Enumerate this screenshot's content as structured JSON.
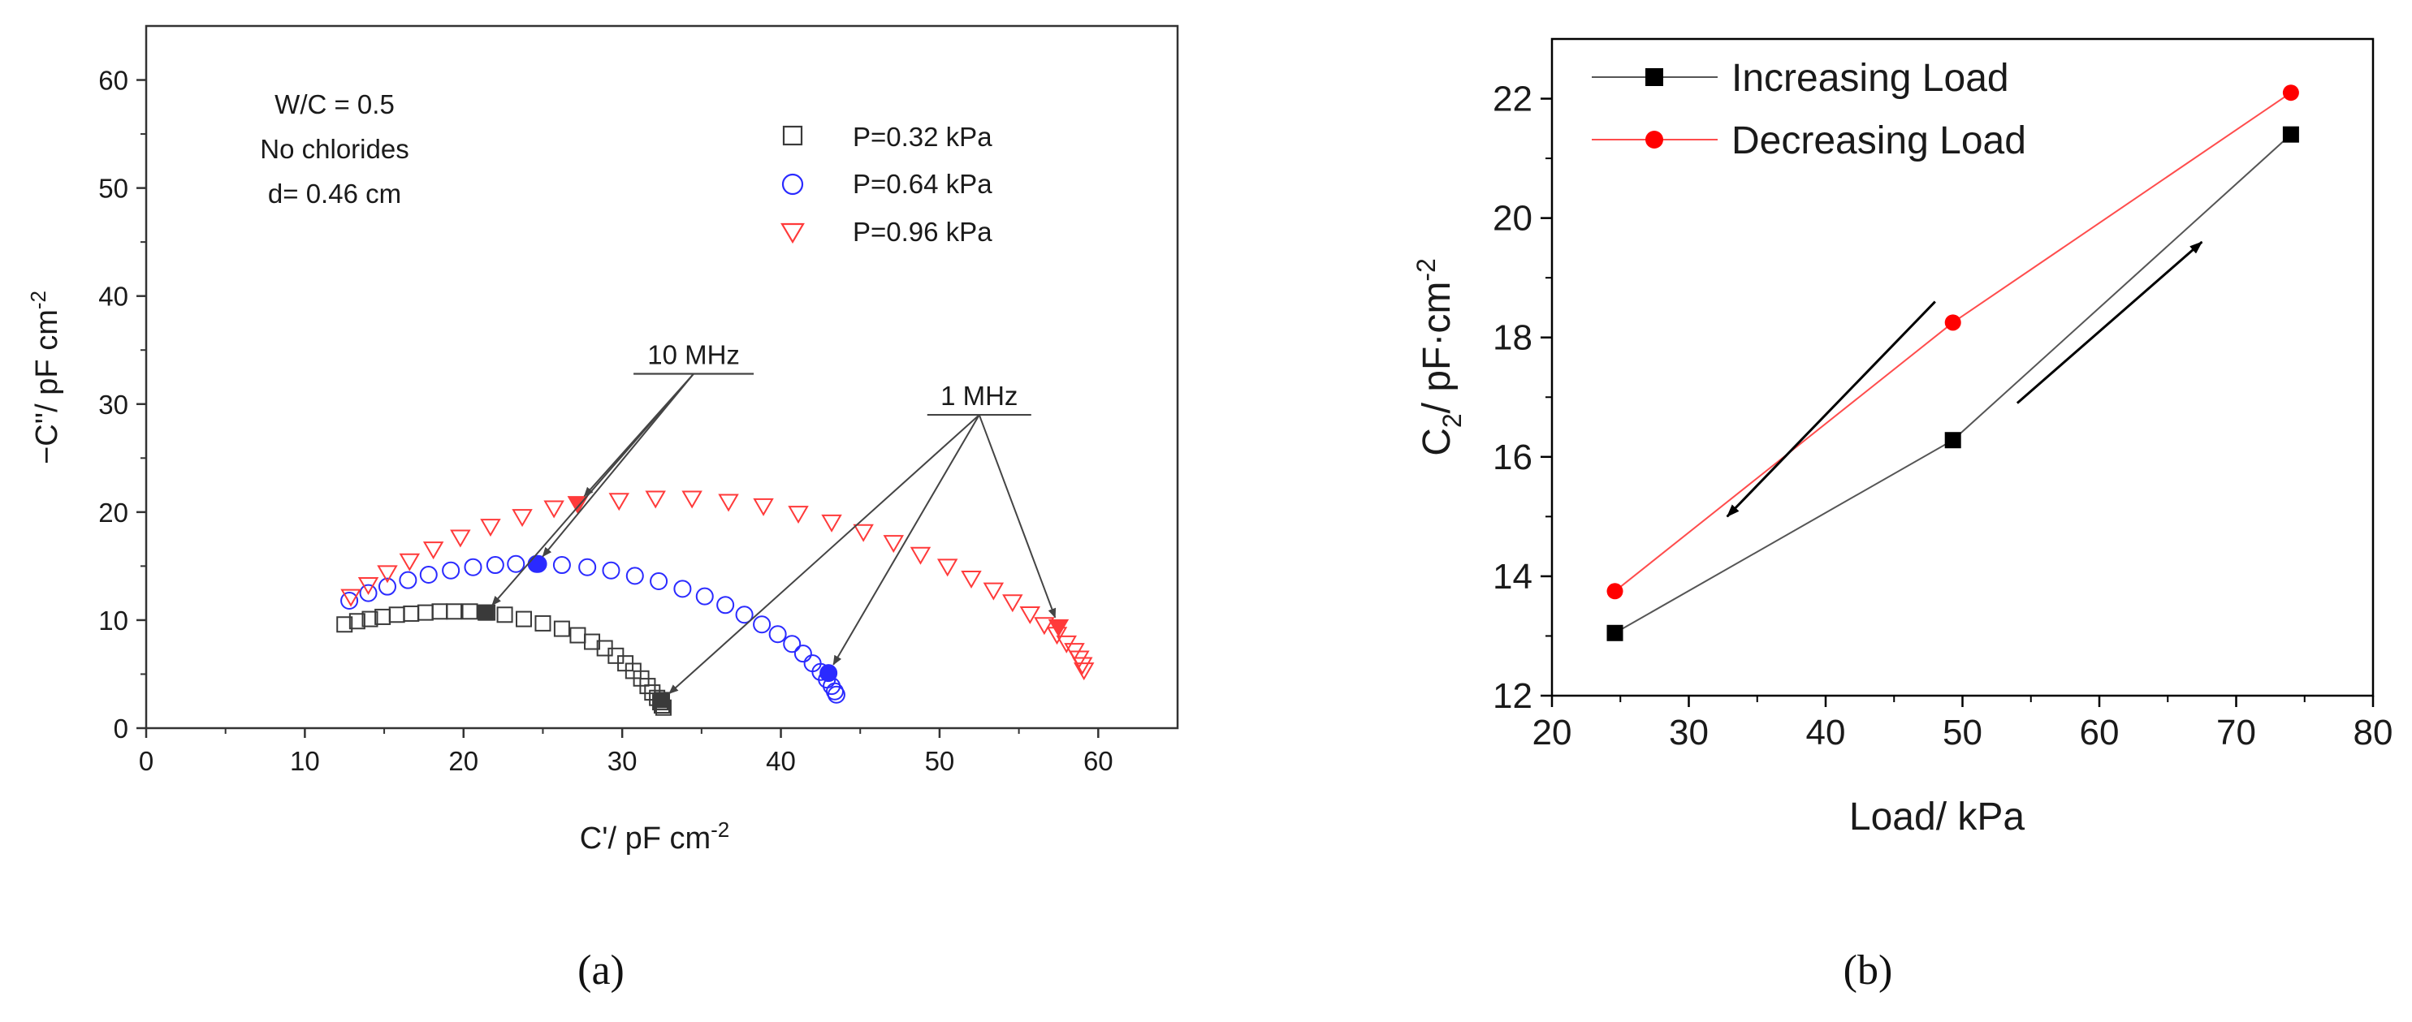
{
  "chart_data": [
    {
      "panel": "(a)",
      "type": "scatter",
      "title": "",
      "xlabel": "C'/ pF cm",
      "xlabel_sup": "-2",
      "ylabel": "−C''/ pF cm",
      "ylabel_sup": "-2",
      "xlim": [
        0,
        65
      ],
      "ylim": [
        0,
        65
      ],
      "xticks": [
        0,
        10,
        20,
        30,
        40,
        50,
        60
      ],
      "yticks": [
        0,
        10,
        20,
        30,
        40,
        50,
        60
      ],
      "info_text": [
        "W/C = 0.5",
        "No chlorides",
        "d= 0.46 cm"
      ],
      "legend_position": "top-right",
      "series": [
        {
          "name": "P=0.32 kPa",
          "marker": "square",
          "color": "#3a3a3a",
          "x": [
            12.5,
            13.3,
            14.1,
            14.9,
            15.8,
            16.7,
            17.6,
            18.5,
            19.4,
            20.4,
            21.5,
            22.6,
            23.8,
            25.0,
            26.2,
            27.2,
            28.1,
            28.9,
            29.6,
            30.2,
            30.7,
            31.2,
            31.6,
            31.9,
            32.2,
            32.4,
            32.5,
            32.6
          ],
          "y": [
            9.6,
            9.9,
            10.1,
            10.3,
            10.5,
            10.6,
            10.7,
            10.8,
            10.8,
            10.8,
            10.7,
            10.5,
            10.1,
            9.7,
            9.2,
            8.6,
            8.0,
            7.4,
            6.7,
            6.0,
            5.3,
            4.6,
            3.9,
            3.3,
            2.8,
            2.4,
            2.1,
            1.9
          ],
          "highlight": {
            "x": 21.4,
            "y": 10.7,
            "x2": 32.5,
            "y2": 2.6
          }
        },
        {
          "name": "P=0.64 kPa",
          "marker": "circle",
          "color": "#2a2aff",
          "x": [
            12.8,
            14.0,
            15.2,
            16.5,
            17.8,
            19.2,
            20.6,
            22.0,
            23.3,
            24.7,
            26.2,
            27.8,
            29.3,
            30.8,
            32.3,
            33.8,
            35.2,
            36.5,
            37.7,
            38.8,
            39.8,
            40.7,
            41.4,
            42.0,
            42.5,
            42.9,
            43.2,
            43.4,
            43.5
          ],
          "y": [
            11.8,
            12.5,
            13.1,
            13.7,
            14.2,
            14.6,
            14.9,
            15.1,
            15.2,
            15.2,
            15.1,
            14.9,
            14.6,
            14.1,
            13.6,
            12.9,
            12.2,
            11.4,
            10.5,
            9.6,
            8.7,
            7.8,
            6.9,
            6.0,
            5.2,
            4.5,
            3.9,
            3.4,
            3.1
          ],
          "highlight": {
            "x": 24.6,
            "y": 15.2,
            "x2": 43.0,
            "y2": 5.1
          }
        },
        {
          "name": "P=0.96 kPa",
          "marker": "triangle-down",
          "color": "#ff3a3a",
          "x": [
            12.9,
            14.0,
            15.2,
            16.6,
            18.1,
            19.8,
            21.7,
            23.7,
            25.7,
            27.2,
            29.8,
            32.1,
            34.4,
            36.7,
            38.9,
            41.1,
            43.2,
            45.2,
            47.1,
            48.8,
            50.5,
            52.0,
            53.4,
            54.6,
            55.7,
            56.6,
            57.4,
            58.0,
            58.5,
            58.8,
            59.0,
            59.1
          ],
          "y": [
            12.2,
            13.3,
            14.4,
            15.5,
            16.6,
            17.7,
            18.7,
            19.6,
            20.4,
            20.8,
            21.1,
            21.3,
            21.3,
            21.0,
            20.6,
            19.9,
            19.1,
            18.2,
            17.2,
            16.1,
            15.0,
            13.9,
            12.8,
            11.7,
            10.6,
            9.6,
            8.7,
            7.9,
            7.2,
            6.5,
            5.9,
            5.4
          ],
          "highlight": {
            "x": 27.2,
            "y": 20.8,
            "x2": 57.5,
            "y2": 9.4
          }
        }
      ],
      "annotations": [
        {
          "label": "10 MHz",
          "x": 34.5,
          "y": 32.8,
          "targets": [
            [
              21.4,
              10.7
            ],
            [
              24.6,
              15.2
            ],
            [
              27.2,
              20.8
            ]
          ]
        },
        {
          "label": "1 MHz",
          "x": 52.5,
          "y": 29.0,
          "targets": [
            [
              32.5,
              2.6
            ],
            [
              43.0,
              5.1
            ],
            [
              57.5,
              9.4
            ]
          ]
        }
      ]
    },
    {
      "panel": "(b)",
      "type": "line",
      "title": "",
      "xlabel": "Load/ kPa",
      "ylabel": "C",
      "ylabel_sub": "2",
      "ylabel_rest": "/ pF·cm",
      "ylabel_sup": "-2",
      "xlim": [
        20,
        80
      ],
      "ylim": [
        12,
        23
      ],
      "xticks": [
        20,
        30,
        40,
        50,
        60,
        70,
        80
      ],
      "yticks": [
        12,
        14,
        16,
        18,
        20,
        22
      ],
      "legend_position": "top-left",
      "series": [
        {
          "name": "Increasing Load",
          "marker": "square",
          "color": "#000000",
          "line_color": "#555555",
          "x": [
            24.6,
            49.3,
            74.0
          ],
          "y": [
            13.05,
            16.28,
            21.4
          ]
        },
        {
          "name": "Decreasing Load",
          "marker": "circle",
          "color": "#ff0000",
          "line_color": "#ff4d4d",
          "x": [
            24.6,
            49.3,
            74.0
          ],
          "y": [
            13.75,
            18.25,
            22.1
          ]
        }
      ],
      "direction_arrows": [
        {
          "from": [
            48.0,
            18.6
          ],
          "to": [
            32.8,
            15.0
          ]
        },
        {
          "from": [
            54.0,
            16.9
          ],
          "to": [
            67.5,
            19.6
          ]
        }
      ]
    }
  ]
}
